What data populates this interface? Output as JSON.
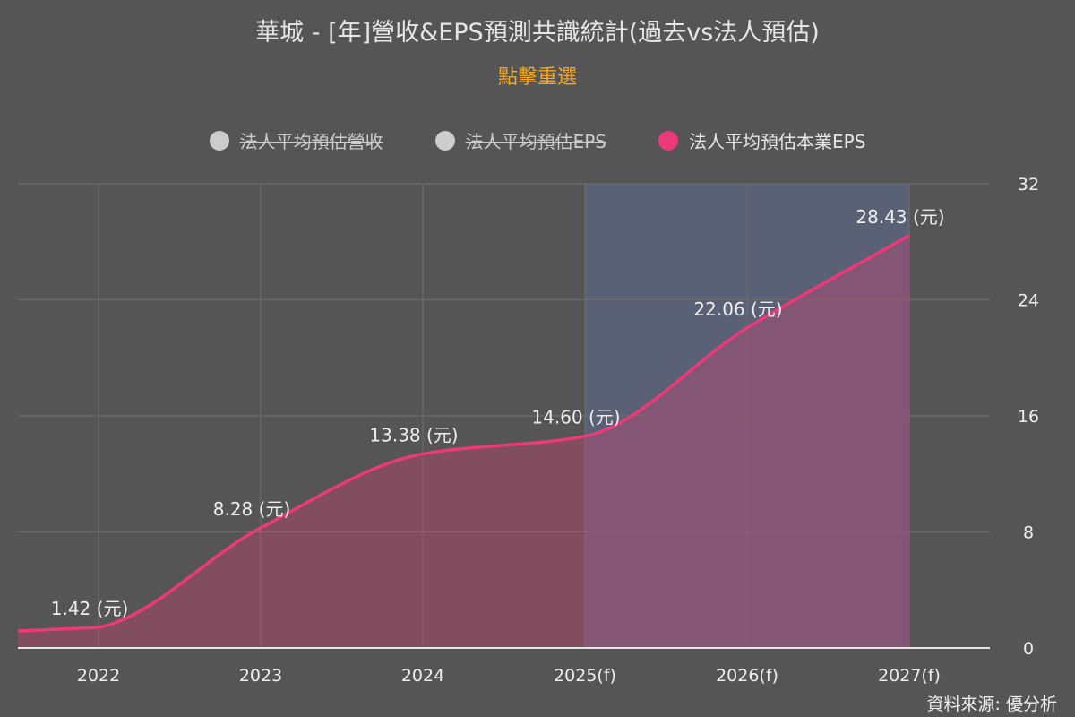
{
  "title": "華城 - [年]營收&EPS預測共識統計(過去vs法人預估)",
  "reset_label": "點擊重選",
  "legend": [
    {
      "label": "法人平均預估營收",
      "active": false,
      "color": "#cccccc"
    },
    {
      "label": "法人平均預估EPS",
      "active": false,
      "color": "#cccccc"
    },
    {
      "label": "法人平均預估本業EPS",
      "active": true,
      "color": "#ec3a78"
    }
  ],
  "source": "資料來源: 優分析",
  "chart_data": {
    "type": "area",
    "categories": [
      "2022",
      "2023",
      "2024",
      "2025(f)",
      "2026(f)",
      "2027(f)"
    ],
    "series": [
      {
        "name": "法人平均預估本業EPS",
        "values": [
          1.42,
          8.28,
          13.38,
          14.6,
          22.06,
          28.43
        ],
        "color": "#ec3a78"
      }
    ],
    "data_labels": [
      "1.42 (元)",
      "8.28 (元)",
      "13.38 (元)",
      "14.60 (元)",
      "22.06 (元)",
      "28.43 (元)"
    ],
    "forecast_band": {
      "from": "2025(f)",
      "to": "2027(f)",
      "color": "#5a6075"
    },
    "y_axis": {
      "position": "right",
      "ylim": [
        0,
        32
      ],
      "ticks": [
        "0",
        "8",
        "16",
        "24",
        "32"
      ]
    },
    "grid": true
  }
}
